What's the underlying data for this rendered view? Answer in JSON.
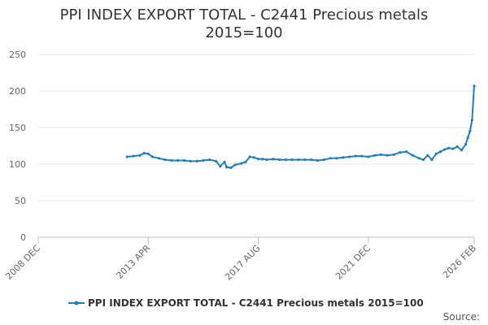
{
  "chart_data": {
    "type": "line",
    "title_line1": "PPI INDEX EXPORT TOTAL - C2441 Precious metals",
    "title_line2": "2015=100",
    "xlabel": "",
    "ylabel": "",
    "ylim": [
      0,
      250
    ],
    "y_ticks": [
      "0",
      "50",
      "100",
      "150",
      "200",
      "250"
    ],
    "x_ticks": [
      "2008 DEC",
      "2013 APR",
      "2017 AUG",
      "2021 DEC",
      "2026 FEB"
    ],
    "x_range": [
      "2008-12",
      "2026-02"
    ],
    "grid": "horizontal",
    "legend_position": "bottom",
    "series": [
      {
        "name": "PPI INDEX EXPORT TOTAL - C2441 Precious metals 2015=100",
        "color": "#1f7fc0",
        "points": [
          [
            "2012-06",
            110
          ],
          [
            "2012-09",
            111
          ],
          [
            "2012-12",
            112
          ],
          [
            "2013-02",
            115
          ],
          [
            "2013-04",
            114
          ],
          [
            "2013-06",
            110
          ],
          [
            "2013-09",
            108
          ],
          [
            "2013-12",
            106
          ],
          [
            "2014-03",
            105
          ],
          [
            "2014-06",
            105
          ],
          [
            "2014-09",
            105
          ],
          [
            "2014-12",
            104
          ],
          [
            "2015-03",
            104
          ],
          [
            "2015-06",
            105
          ],
          [
            "2015-09",
            106
          ],
          [
            "2015-12",
            104
          ],
          [
            "2016-02",
            97
          ],
          [
            "2016-04",
            103
          ],
          [
            "2016-05",
            96
          ],
          [
            "2016-07",
            95
          ],
          [
            "2016-09",
            99
          ],
          [
            "2016-12",
            101
          ],
          [
            "2017-02",
            103
          ],
          [
            "2017-04",
            110
          ],
          [
            "2017-06",
            109
          ],
          [
            "2017-08",
            107
          ],
          [
            "2017-10",
            107
          ],
          [
            "2017-12",
            106
          ],
          [
            "2018-03",
            107
          ],
          [
            "2018-06",
            106
          ],
          [
            "2018-09",
            106
          ],
          [
            "2018-12",
            106
          ],
          [
            "2019-03",
            106
          ],
          [
            "2019-06",
            106
          ],
          [
            "2019-09",
            106
          ],
          [
            "2019-12",
            105
          ],
          [
            "2020-03",
            106
          ],
          [
            "2020-06",
            108
          ],
          [
            "2020-09",
            108
          ],
          [
            "2020-12",
            109
          ],
          [
            "2021-03",
            110
          ],
          [
            "2021-06",
            111
          ],
          [
            "2021-09",
            111
          ],
          [
            "2021-12",
            110
          ],
          [
            "2022-03",
            112
          ],
          [
            "2022-06",
            113
          ],
          [
            "2022-09",
            112
          ],
          [
            "2022-12",
            113
          ],
          [
            "2023-03",
            116
          ],
          [
            "2023-06",
            117
          ],
          [
            "2023-09",
            112
          ],
          [
            "2023-12",
            108
          ],
          [
            "2024-02",
            106
          ],
          [
            "2024-04",
            112
          ],
          [
            "2024-06",
            106
          ],
          [
            "2024-08",
            114
          ],
          [
            "2024-10",
            117
          ],
          [
            "2024-12",
            120
          ],
          [
            "2025-02",
            122
          ],
          [
            "2025-04",
            121
          ],
          [
            "2025-06",
            124
          ],
          [
            "2025-08",
            119
          ],
          [
            "2025-10",
            127
          ],
          [
            "2025-11",
            136
          ],
          [
            "2025-12",
            145
          ],
          [
            "2026-01",
            160
          ],
          [
            "2026-02",
            207
          ]
        ]
      }
    ]
  },
  "source_label": "Source:"
}
